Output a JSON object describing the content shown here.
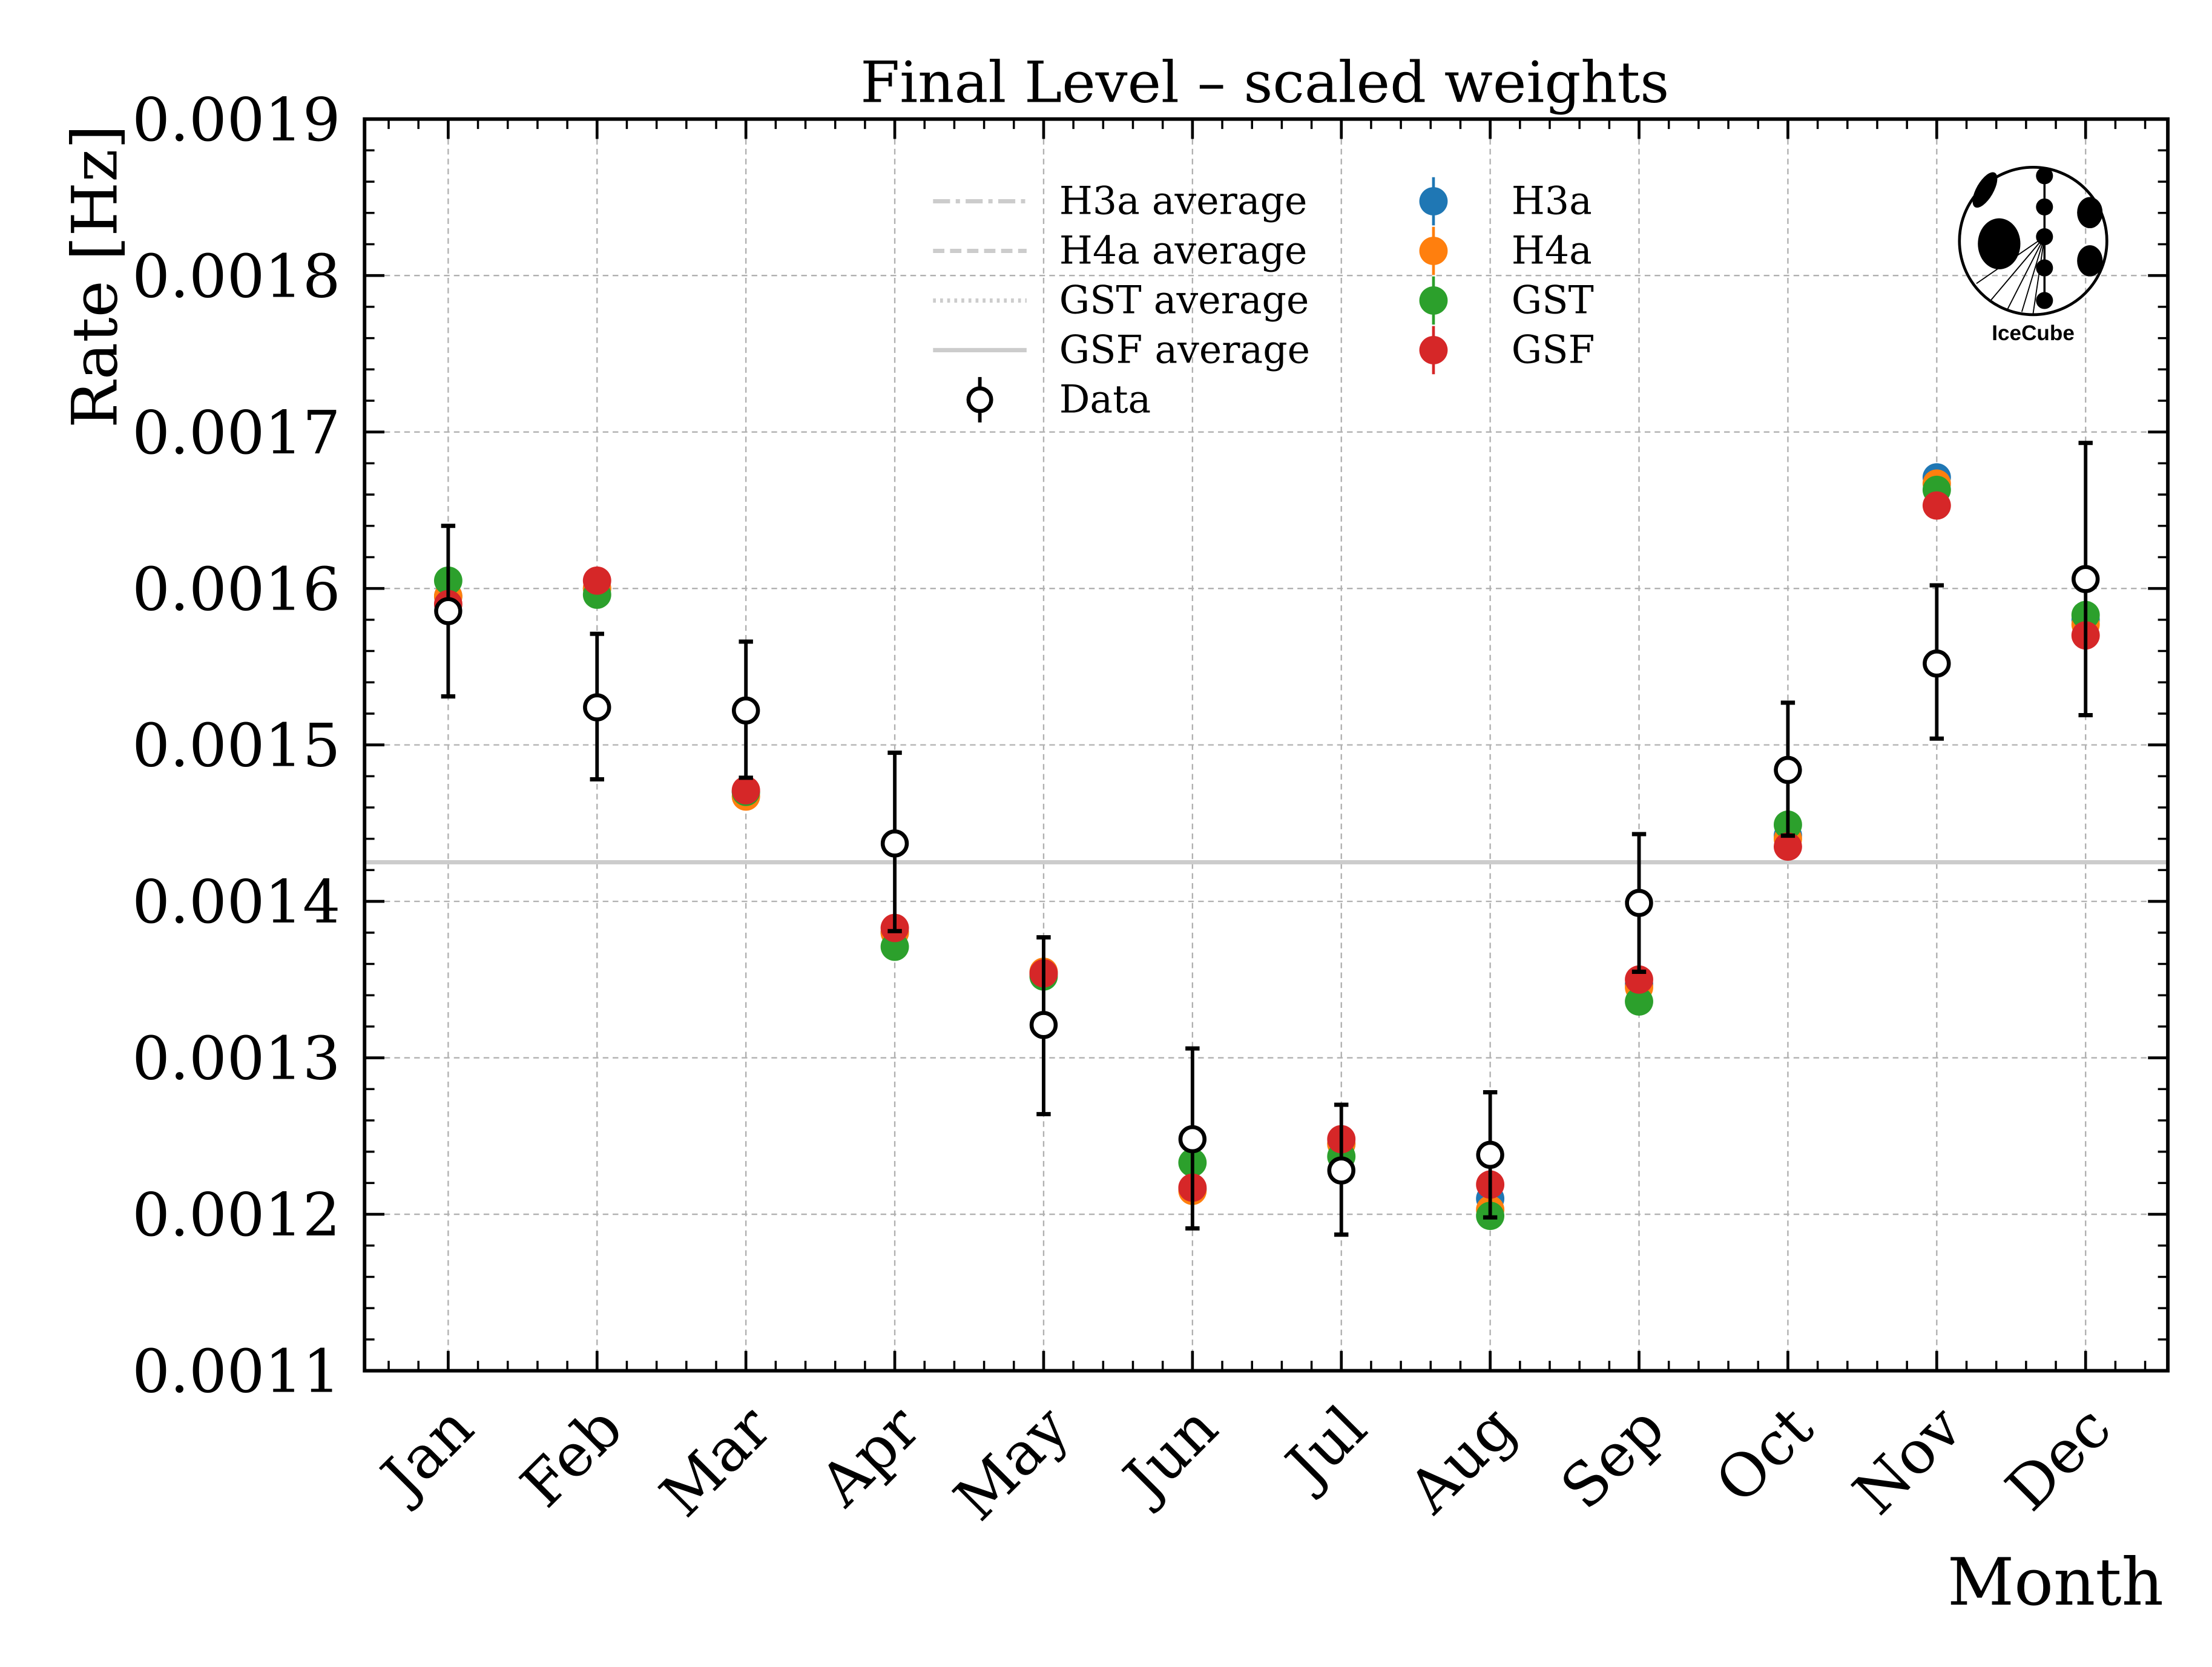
{
  "chart_data": {
    "type": "scatter",
    "title": "Final Level – scaled weights",
    "xlabel": "Month",
    "ylabel": "Rate [Hz]",
    "ylim": [
      0.0011,
      0.0019
    ],
    "yticks": [
      "0.0011",
      "0.0012",
      "0.0013",
      "0.0014",
      "0.0015",
      "0.0016",
      "0.0017",
      "0.0018",
      "0.0019"
    ],
    "categories": [
      "Jan",
      "Feb",
      "Mar",
      "Apr",
      "May",
      "Jun",
      "Jul",
      "Aug",
      "Sep",
      "Oct",
      "Nov",
      "Dec"
    ],
    "grid": true,
    "legend_placement": "top-center",
    "averages": [
      {
        "name": "H3a average",
        "value": 0.001425,
        "style": "dashdot"
      },
      {
        "name": "H4a average",
        "value": 0.001425,
        "style": "dashed"
      },
      {
        "name": "GST average",
        "value": 0.001425,
        "style": "dotted"
      },
      {
        "name": "GSF average",
        "value": 0.001425,
        "style": "solid"
      }
    ],
    "series": [
      {
        "name": "H3a",
        "color": "#1f77b4",
        "values": [
          0.001595,
          0.0016,
          0.00147,
          0.00138,
          0.001354,
          0.001216,
          0.001245,
          0.00121,
          0.001347,
          0.001442,
          0.001671,
          0.00158
        ]
      },
      {
        "name": "H4a",
        "color": "#ff7f0e",
        "values": [
          0.001595,
          0.0016,
          0.001467,
          0.00138,
          0.001355,
          0.001215,
          0.001245,
          0.001203,
          0.001345,
          0.00144,
          0.001667,
          0.001577
        ]
      },
      {
        "name": "GST",
        "color": "#2ca02c",
        "values": [
          0.001605,
          0.001596,
          0.00147,
          0.001371,
          0.001352,
          0.001233,
          0.001237,
          0.001199,
          0.001336,
          0.001449,
          0.001663,
          0.001583
        ]
      },
      {
        "name": "GSF",
        "color": "#d62728",
        "values": [
          0.00159,
          0.001605,
          0.001471,
          0.001383,
          0.001354,
          0.001217,
          0.001248,
          0.001219,
          0.00135,
          0.001435,
          0.001653,
          0.00157
        ]
      }
    ],
    "data": {
      "name": "Data",
      "values": [
        0.0015855,
        0.001524,
        0.001522,
        0.001437,
        0.001321,
        0.001248,
        0.001228,
        0.001238,
        0.001399,
        0.001484,
        0.001552,
        0.001606
      ],
      "err_low": [
        0.001531,
        0.001478,
        0.001479,
        0.001381,
        0.001264,
        0.001191,
        0.001187,
        0.001198,
        0.001355,
        0.001442,
        0.001504,
        0.001519
      ],
      "err_high": [
        0.00164,
        0.001571,
        0.001566,
        0.001495,
        0.001377,
        0.001306,
        0.00127,
        0.001278,
        0.001443,
        0.001527,
        0.001602,
        0.001693
      ]
    },
    "logo_text": "IceCube"
  }
}
